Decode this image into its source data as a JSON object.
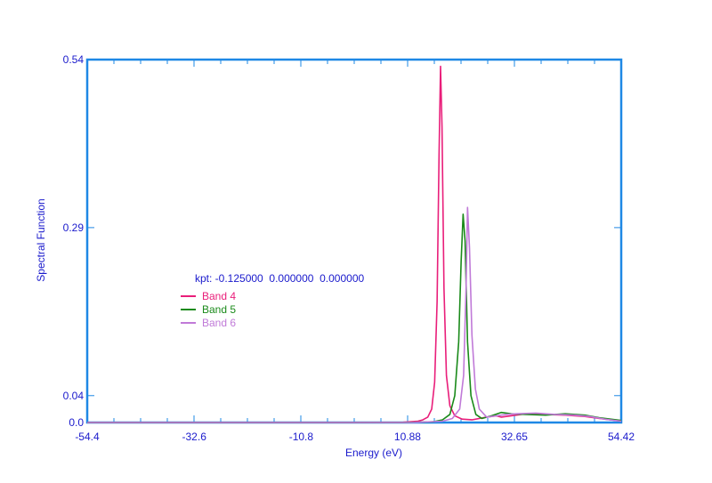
{
  "colors": {
    "axis": "#1e88e5",
    "text": "#1a1acc",
    "band4": "#e91e7a",
    "band5": "#1a8a1a",
    "band6": "#c07ad8"
  },
  "chart_data": {
    "type": "line",
    "title": "",
    "xlabel": "Energy (eV)",
    "ylabel": "Spectral Function",
    "xlim": [
      -54.4,
      54.42
    ],
    "ylim": [
      0.0,
      0.54
    ],
    "x_ticks": [
      "-54.4",
      "-32.6",
      "-10.8",
      "10.88",
      "32.65",
      "54.42"
    ],
    "x_tick_values": [
      -54.4,
      -32.6,
      -10.8,
      10.88,
      32.65,
      54.42
    ],
    "y_ticks": [
      "0.0",
      "0.04",
      "0.29",
      "0.54"
    ],
    "y_tick_values": [
      0.0,
      0.04,
      0.29,
      0.54
    ],
    "legend_title": "kpt: -0.125000  0.000000  0.000000",
    "legend_position": "left-middle",
    "grid": false,
    "series": [
      {
        "name": "Band 4",
        "color": "#e91e7a",
        "points": [
          [
            -54.4,
            0.0
          ],
          [
            0,
            0.0
          ],
          [
            10,
            0.0005
          ],
          [
            13,
            0.002
          ],
          [
            14,
            0.004
          ],
          [
            15,
            0.008
          ],
          [
            15.8,
            0.02
          ],
          [
            16.4,
            0.06
          ],
          [
            16.9,
            0.18
          ],
          [
            17.3,
            0.4
          ],
          [
            17.6,
            0.53
          ],
          [
            17.9,
            0.44
          ],
          [
            18.3,
            0.2
          ],
          [
            18.8,
            0.07
          ],
          [
            19.5,
            0.025
          ],
          [
            20.5,
            0.01
          ],
          [
            22,
            0.005
          ],
          [
            24,
            0.004
          ],
          [
            27,
            0.008
          ],
          [
            29,
            0.01
          ],
          [
            30,
            0.008
          ],
          [
            32,
            0.01
          ],
          [
            35,
            0.013
          ],
          [
            39,
            0.012
          ],
          [
            43,
            0.011
          ],
          [
            47,
            0.009
          ],
          [
            50,
            0.006
          ],
          [
            54.42,
            0.002
          ]
        ]
      },
      {
        "name": "Band 5",
        "color": "#1a8a1a",
        "points": [
          [
            -54.4,
            0.0
          ],
          [
            10,
            0.0
          ],
          [
            16,
            0.001
          ],
          [
            18,
            0.004
          ],
          [
            19.5,
            0.012
          ],
          [
            20.5,
            0.04
          ],
          [
            21.3,
            0.12
          ],
          [
            21.8,
            0.24
          ],
          [
            22.2,
            0.31
          ],
          [
            22.6,
            0.27
          ],
          [
            23.1,
            0.12
          ],
          [
            23.8,
            0.04
          ],
          [
            24.8,
            0.012
          ],
          [
            26,
            0.006
          ],
          [
            28,
            0.01
          ],
          [
            30,
            0.015
          ],
          [
            32,
            0.013
          ],
          [
            35,
            0.012
          ],
          [
            39,
            0.011
          ],
          [
            43,
            0.013
          ],
          [
            47,
            0.011
          ],
          [
            50,
            0.007
          ],
          [
            54.42,
            0.003
          ]
        ]
      },
      {
        "name": "Band 6",
        "color": "#c07ad8",
        "points": [
          [
            -54.4,
            0.0
          ],
          [
            12,
            0.0
          ],
          [
            18,
            0.002
          ],
          [
            20,
            0.006
          ],
          [
            21.5,
            0.02
          ],
          [
            22.3,
            0.07
          ],
          [
            22.8,
            0.2
          ],
          [
            23.1,
            0.32
          ],
          [
            23.5,
            0.26
          ],
          [
            24,
            0.13
          ],
          [
            24.7,
            0.05
          ],
          [
            25.5,
            0.02
          ],
          [
            27,
            0.008
          ],
          [
            29,
            0.01
          ],
          [
            31,
            0.012
          ],
          [
            33,
            0.013
          ],
          [
            37,
            0.014
          ],
          [
            41,
            0.012
          ],
          [
            45,
            0.011
          ],
          [
            48,
            0.009
          ],
          [
            51,
            0.005
          ],
          [
            54.42,
            0.002
          ]
        ]
      }
    ]
  }
}
